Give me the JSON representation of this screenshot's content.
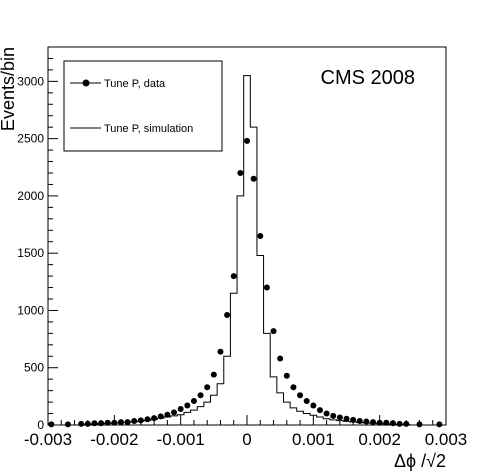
{
  "chart_data": {
    "type": "line",
    "annotation": "CMS 2008",
    "xlabel": "Δϕ /√2",
    "ylabel": "Events/bin",
    "xlim": [
      -0.003,
      0.003
    ],
    "ylim": [
      0,
      3300
    ],
    "x_ticks": [
      -0.003,
      -0.002,
      -0.001,
      0,
      0.001,
      0.002,
      0.003
    ],
    "x_tick_labels": [
      "-0.003",
      "-0.002",
      "-0.001",
      "0",
      "0.001",
      "0.002",
      "0.003"
    ],
    "y_ticks": [
      0,
      500,
      1000,
      1500,
      2000,
      2500,
      3000
    ],
    "y_tick_labels": [
      "0",
      "500",
      "1000",
      "1500",
      "2000",
      "2500",
      "3000"
    ],
    "legend_position": "top-left",
    "series": [
      {
        "name": "Tune P, data",
        "style": "markers",
        "x": [
          -0.00295,
          -0.0027,
          -0.0025,
          -0.0024,
          -0.0023,
          -0.0022,
          -0.0021,
          -0.002,
          -0.0019,
          -0.0018,
          -0.0017,
          -0.0016,
          -0.0015,
          -0.0014,
          -0.0013,
          -0.0012,
          -0.0011,
          -0.001,
          -0.0009,
          -0.0008,
          -0.0007,
          -0.0006,
          -0.0005,
          -0.0004,
          -0.0003,
          -0.0002,
          -0.0001,
          0.0,
          0.0001,
          0.0002,
          0.0003,
          0.0004,
          0.0005,
          0.0006,
          0.0007,
          0.0008,
          0.0009,
          0.001,
          0.0011,
          0.0012,
          0.0013,
          0.0014,
          0.0015,
          0.0016,
          0.0017,
          0.0018,
          0.0019,
          0.002,
          0.0021,
          0.0022,
          0.0023,
          0.0024,
          0.0026,
          0.0029
        ],
        "y": [
          5,
          5,
          10,
          10,
          15,
          15,
          20,
          20,
          25,
          25,
          35,
          40,
          50,
          60,
          75,
          90,
          110,
          140,
          170,
          210,
          260,
          330,
          440,
          640,
          960,
          1300,
          2200,
          2480,
          2150,
          1650,
          1200,
          820,
          580,
          430,
          330,
          260,
          210,
          170,
          130,
          100,
          80,
          65,
          55,
          45,
          35,
          30,
          25,
          20,
          20,
          15,
          10,
          10,
          5,
          5
        ]
      },
      {
        "name": "Tune P, simulation",
        "style": "step",
        "bin_width": 0.0001,
        "x": [
          -0.0024,
          -0.0023,
          -0.0022,
          -0.0021,
          -0.002,
          -0.0019,
          -0.0018,
          -0.0017,
          -0.0016,
          -0.0015,
          -0.0014,
          -0.0013,
          -0.0012,
          -0.0011,
          -0.001,
          -0.0009,
          -0.0008,
          -0.0007,
          -0.0006,
          -0.0005,
          -0.0004,
          -0.0003,
          -0.0002,
          -0.0001,
          0.0,
          0.0001,
          0.0002,
          0.0003,
          0.0004,
          0.0005,
          0.0006,
          0.0007,
          0.0008,
          0.0009,
          0.001,
          0.0011,
          0.0012,
          0.0013,
          0.0014,
          0.0015,
          0.0016,
          0.0017,
          0.0018,
          0.0019,
          0.002,
          0.0021,
          0.0022,
          0.0023,
          0.0024
        ],
        "y": [
          8,
          10,
          12,
          14,
          16,
          20,
          24,
          28,
          34,
          40,
          50,
          60,
          70,
          80,
          90,
          110,
          130,
          160,
          200,
          260,
          360,
          600,
          1150,
          2000,
          3050,
          2600,
          1480,
          800,
          420,
          280,
          200,
          150,
          120,
          100,
          85,
          70,
          55,
          45,
          38,
          32,
          26,
          22,
          18,
          15,
          12,
          10,
          8,
          6,
          5
        ]
      }
    ]
  }
}
